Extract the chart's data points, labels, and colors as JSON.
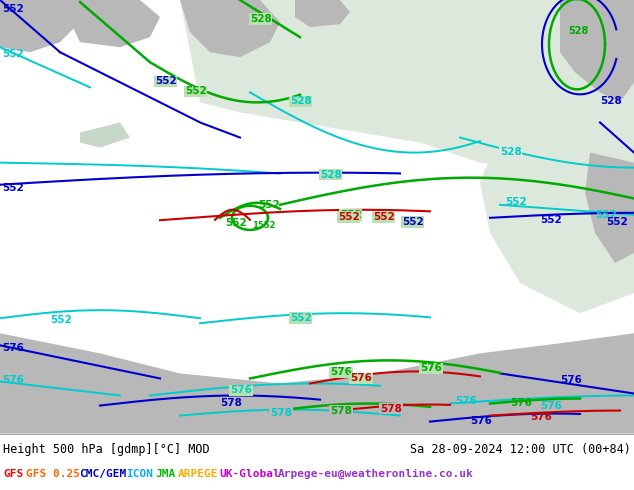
{
  "title_left": "Height 500 hPa [gdmp][°C] MOD",
  "title_right": "Sa 28-09-2024 12:00 UTC (00+84)",
  "legend_items": [
    {
      "label": "GFS",
      "color": "#ff0000"
    },
    {
      "label": "GFS 0.25",
      "color": "#ff6600"
    },
    {
      "label": "CMC/GEM",
      "color": "#0000cc"
    },
    {
      "label": "ICON",
      "color": "#00aaff"
    },
    {
      "label": "JMA",
      "color": "#00bb00"
    },
    {
      "label": "ARPEGE",
      "color": "#ffaa00"
    },
    {
      "label": "UK-Global",
      "color": "#cc00cc"
    },
    {
      "label": "Arpege-eu@weatheronline.co.uk",
      "color": "#9933cc"
    }
  ],
  "bg_green_light": "#b8e0b0",
  "bg_gray": "#d0d0d0",
  "bg_sea_white": "#e8ede8",
  "figsize": [
    6.34,
    4.9
  ],
  "dpi": 100
}
